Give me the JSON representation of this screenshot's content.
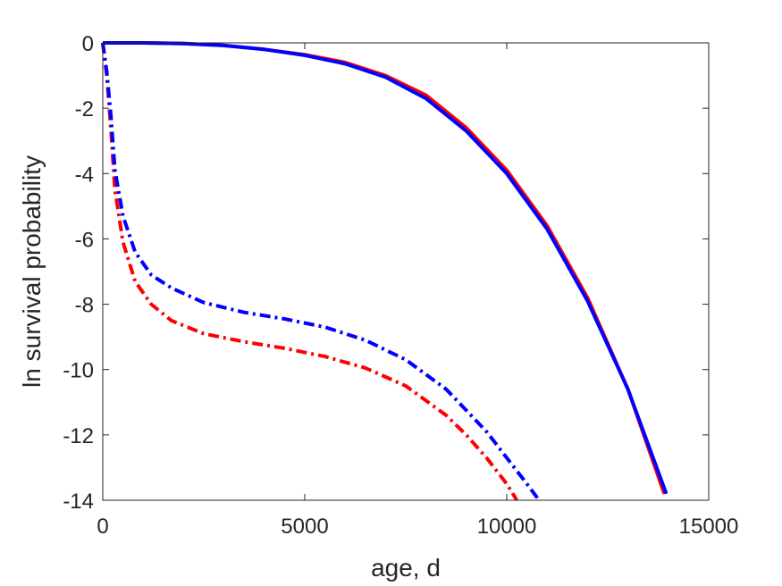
{
  "chart_data": {
    "type": "line",
    "title": "",
    "xlabel": "age, d",
    "ylabel": "ln survival probability",
    "xlim": [
      0,
      15000
    ],
    "ylim": [
      -14,
      0
    ],
    "xticks": [
      0,
      5000,
      10000,
      15000
    ],
    "yticks": [
      0,
      -2,
      -4,
      -6,
      -8,
      -10,
      -12,
      -14
    ],
    "grid": false,
    "legend": "none",
    "series": [
      {
        "color": "#ff0000",
        "style": "solid",
        "x": [
          0,
          1000,
          2000,
          3000,
          4000,
          5000,
          6000,
          7000,
          8000,
          9000,
          10000,
          11000,
          12000,
          13000,
          13900
        ],
        "y": [
          0,
          0,
          -0.02,
          -0.08,
          -0.2,
          -0.36,
          -0.6,
          -1.0,
          -1.6,
          -2.6,
          -3.9,
          -5.6,
          -7.8,
          -10.6,
          -13.8
        ]
      },
      {
        "color": "#0000ff",
        "style": "solid",
        "x": [
          0,
          1000,
          2000,
          3000,
          4000,
          5000,
          6000,
          7000,
          8000,
          9000,
          10000,
          11000,
          12000,
          13000,
          13950
        ],
        "y": [
          0,
          0,
          -0.02,
          -0.08,
          -0.2,
          -0.38,
          -0.64,
          -1.05,
          -1.7,
          -2.7,
          -4.0,
          -5.7,
          -7.9,
          -10.6,
          -13.8
        ]
      },
      {
        "color": "#ff0000",
        "style": "dashdot",
        "x": [
          0,
          100,
          200,
          300,
          500,
          800,
          1200,
          1700,
          2500,
          3500,
          4500,
          5500,
          6500,
          7500,
          8500,
          9000,
          9500,
          10000,
          10250
        ],
        "y": [
          0,
          -1.0,
          -2.6,
          -4.5,
          -6.1,
          -7.3,
          -8.0,
          -8.5,
          -8.9,
          -9.15,
          -9.35,
          -9.6,
          -9.95,
          -10.5,
          -11.4,
          -12.0,
          -12.7,
          -13.5,
          -14.0
        ]
      },
      {
        "color": "#0000ff",
        "style": "dashdot",
        "x": [
          0,
          100,
          200,
          300,
          500,
          800,
          1200,
          1700,
          2500,
          3500,
          4500,
          5500,
          6500,
          7500,
          8500,
          9500,
          10000,
          10500,
          10800
        ],
        "y": [
          0,
          -0.9,
          -2.2,
          -3.9,
          -5.3,
          -6.4,
          -7.1,
          -7.5,
          -7.95,
          -8.25,
          -8.45,
          -8.7,
          -9.1,
          -9.7,
          -10.6,
          -11.9,
          -12.7,
          -13.5,
          -14.0
        ]
      }
    ]
  }
}
